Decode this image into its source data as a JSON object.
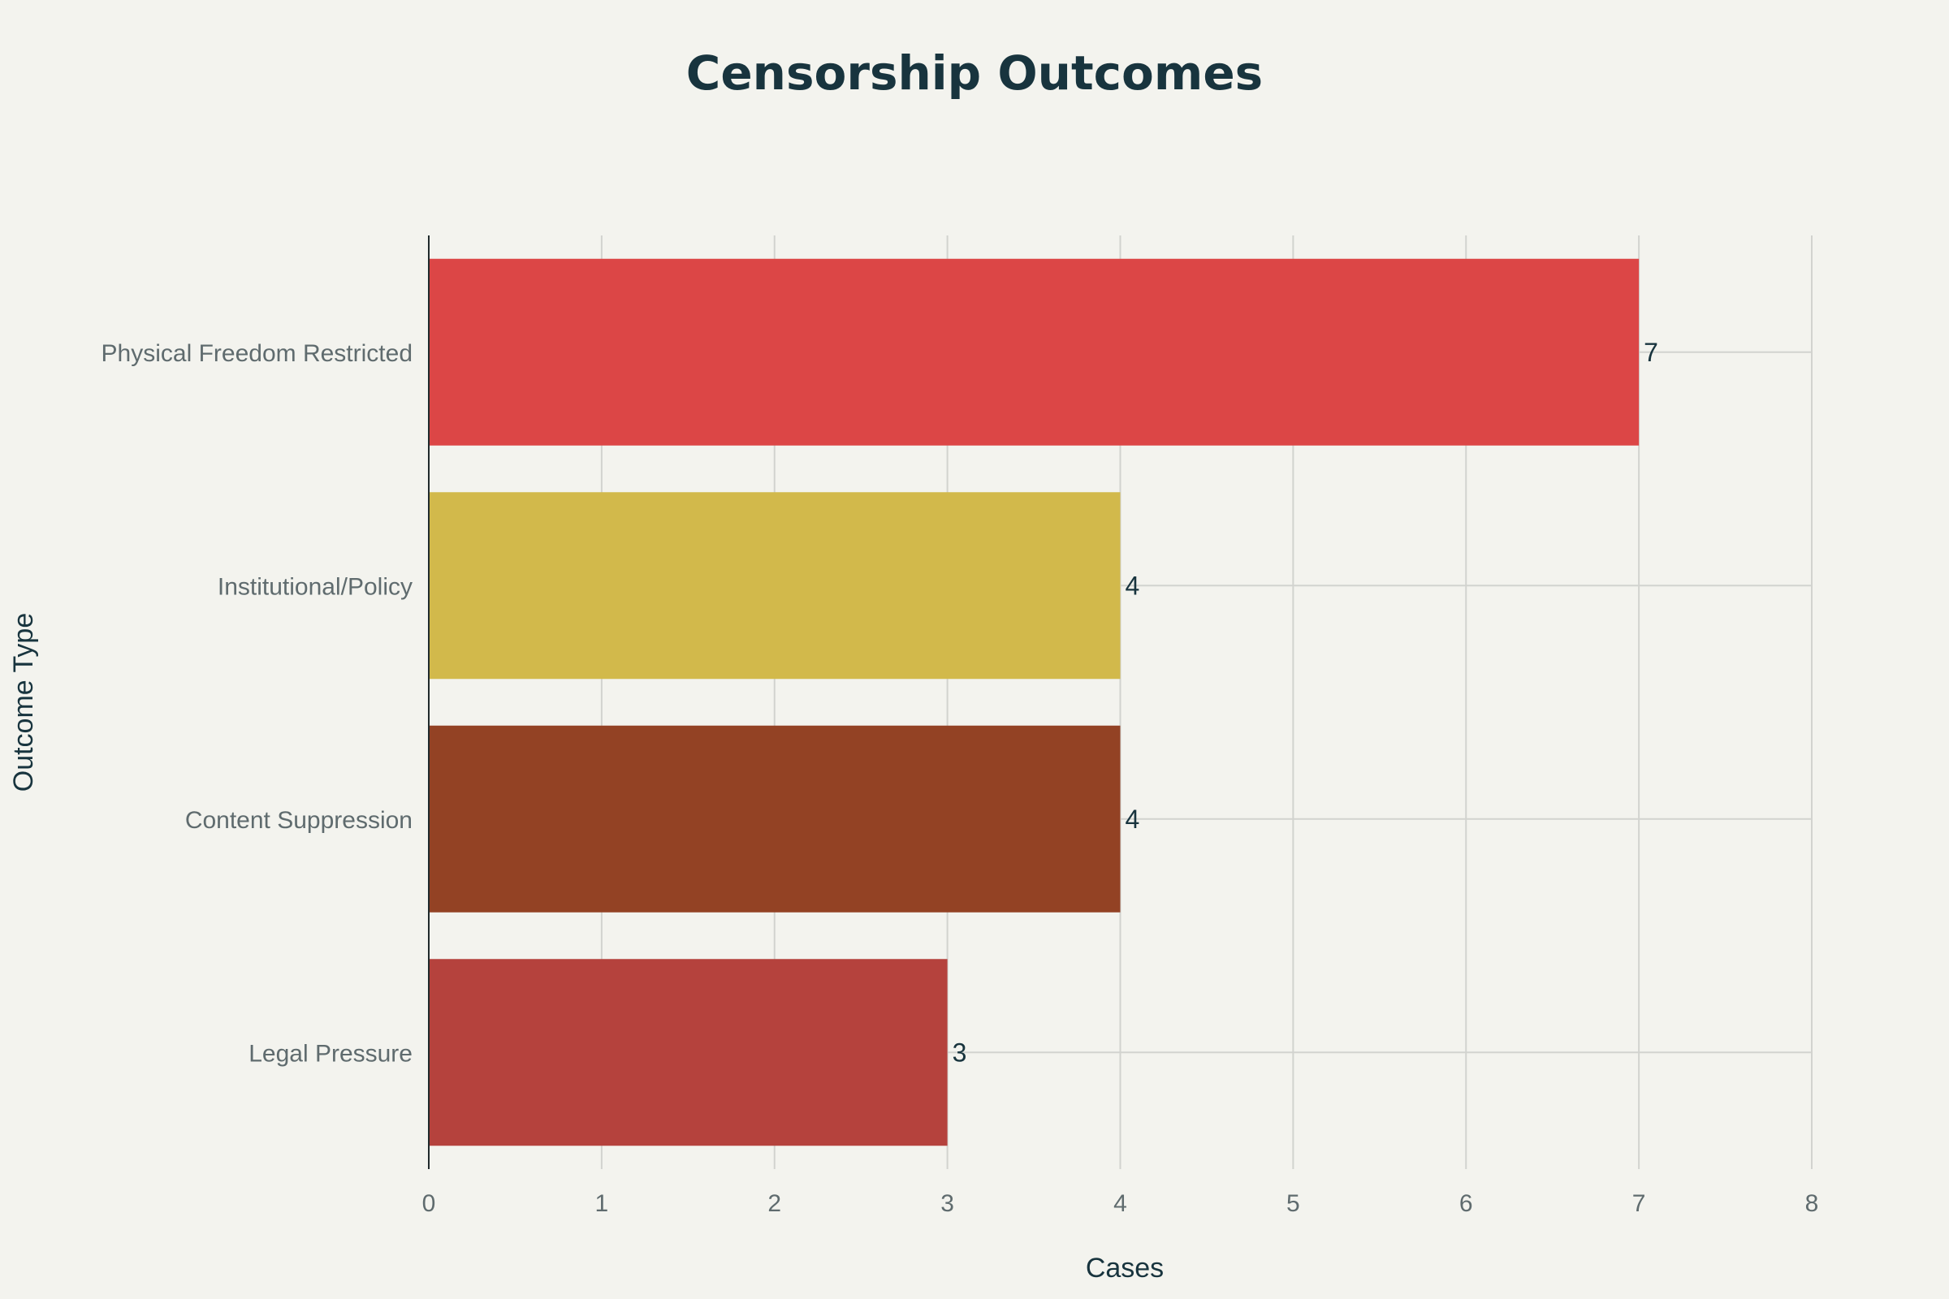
{
  "chart_data": {
    "type": "bar",
    "orientation": "horizontal",
    "title": "Censorship Outcomes",
    "xlabel": "Cases",
    "ylabel": "Outcome Type",
    "categories": [
      "Physical Freedom Restricted",
      "Institutional/Policy",
      "Content Suppression",
      "Legal Pressure"
    ],
    "values": [
      7,
      4,
      4,
      3
    ],
    "value_labels": [
      "7",
      "4",
      "4",
      "3"
    ],
    "bar_colors": [
      "#dc4646",
      "#d2b94b",
      "#934224",
      "#b5423d"
    ],
    "xlim": [
      0,
      8
    ],
    "x_ticks": [
      0,
      1,
      2,
      3,
      4,
      5,
      6,
      7,
      8
    ],
    "x_tick_labels": [
      "0",
      "1",
      "2",
      "3",
      "4",
      "5",
      "6",
      "7",
      "8"
    ],
    "grid": true,
    "legend": "none"
  },
  "colors": {
    "background": "#f3f3ee",
    "title": "#18343e",
    "axis_text": "#5f6b6e",
    "label_text": "#18343e",
    "grid": "#d2d3cf",
    "axis_line": "#1f2a2c"
  }
}
